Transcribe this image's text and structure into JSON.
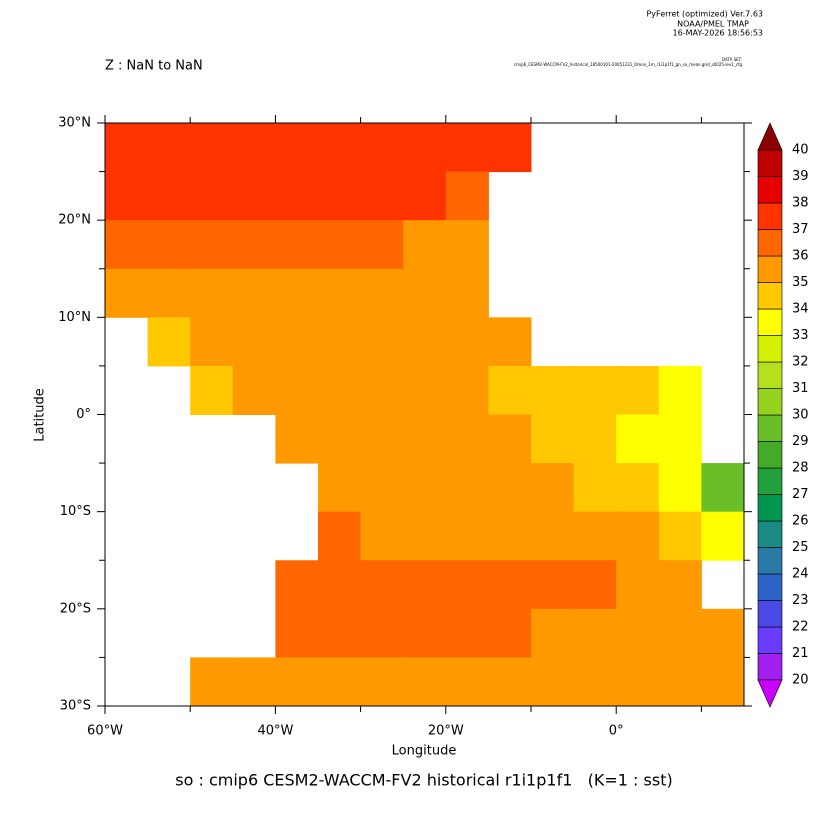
{
  "chart_data": {
    "type": "heatmap",
    "header": [
      "PyFerret (optimized) Ver.7.63",
      "NOAA/PMEL TMAP",
      "16-MAY-2026 18:56:53"
    ],
    "dataset_label": "DATA SET:",
    "dataset": "cmip6_CESM2-WACCM-FV2_historical_18500101-20051231_Omon_1m_r1i1p1f1_gn_so_mean.grid_s0025-lev1_cfg",
    "subtitle": "Z : NaN to NaN",
    "title": "so : cmip6 CESM2-WACCM-FV2 historical r1i1p1f1   (K=1 : sst)",
    "x_label": "Longitude",
    "y_label": "Latitude",
    "xlim": [
      -60,
      15
    ],
    "ylim": [
      -30,
      30
    ],
    "xticks": [
      {
        "value": -60,
        "label": "60°W"
      },
      {
        "value": -40,
        "label": "40°W"
      },
      {
        "value": -20,
        "label": "20°W"
      },
      {
        "value": 0,
        "label": "0°"
      }
    ],
    "xminorticks": [
      -50,
      -30,
      -10,
      10
    ],
    "yticks": [
      {
        "value": -30,
        "label": "30°S"
      },
      {
        "value": -20,
        "label": "20°S"
      },
      {
        "value": -10,
        "label": "10°S"
      },
      {
        "value": 0,
        "label": "0°"
      },
      {
        "value": 10,
        "label": "10°N"
      },
      {
        "value": 20,
        "label": "20°N"
      },
      {
        "value": 30,
        "label": "30°N"
      }
    ],
    "yminorticks": [
      -25,
      -15,
      -5,
      5,
      15,
      25
    ],
    "x": [
      -57.5,
      -52.5,
      -47.5,
      -42.5,
      -37.5,
      -32.5,
      -27.5,
      -22.5,
      -17.5,
      -12.5,
      -7.5,
      -2.5,
      2.5,
      7.5,
      12.5
    ],
    "y": [
      27.5,
      22.5,
      17.5,
      12.5,
      7.5,
      2.5,
      -2.5,
      -7.5,
      -12.5,
      -17.5,
      -22.5,
      -27.5
    ],
    "values": [
      [
        37,
        37,
        37,
        37,
        37,
        37,
        37,
        37,
        37,
        37,
        null,
        null,
        null,
        null,
        null
      ],
      [
        37,
        37,
        37,
        37,
        37,
        37,
        37,
        37,
        36,
        null,
        null,
        null,
        null,
        null,
        null
      ],
      [
        36,
        36,
        36,
        36,
        36,
        36,
        36,
        35,
        35,
        null,
        null,
        null,
        null,
        null,
        null
      ],
      [
        35,
        35,
        35,
        35,
        35,
        35,
        35,
        35,
        35,
        null,
        null,
        null,
        null,
        null,
        null
      ],
      [
        null,
        34,
        35,
        35,
        35,
        35,
        35,
        35,
        35,
        35,
        null,
        null,
        null,
        null,
        null
      ],
      [
        null,
        null,
        34,
        35,
        35,
        35,
        35,
        35,
        35,
        34,
        34,
        34,
        34,
        33,
        null
      ],
      [
        null,
        null,
        null,
        null,
        35,
        35,
        35,
        35,
        35,
        35,
        34,
        34,
        33,
        33,
        null
      ],
      [
        null,
        null,
        null,
        null,
        null,
        35,
        35,
        35,
        35,
        35,
        35,
        34,
        34,
        33,
        29
      ],
      [
        null,
        null,
        null,
        null,
        null,
        36,
        35,
        35,
        35,
        35,
        35,
        35,
        35,
        34,
        33
      ],
      [
        null,
        null,
        null,
        null,
        36,
        36,
        36,
        36,
        36,
        36,
        36,
        36,
        35,
        35,
        null
      ],
      [
        null,
        null,
        null,
        null,
        36,
        36,
        36,
        36,
        36,
        36,
        35,
        35,
        35,
        35,
        35
      ],
      [
        null,
        null,
        35,
        35,
        35,
        35,
        35,
        35,
        35,
        35,
        35,
        35,
        35,
        35,
        35
      ]
    ],
    "colorbar": {
      "levels": [
        20,
        21,
        22,
        23,
        24,
        25,
        26,
        27,
        28,
        29,
        30,
        31,
        32,
        33,
        34,
        35,
        36,
        37,
        38,
        39,
        40
      ],
      "colors": [
        "#a020f0",
        "#6a3cff",
        "#4a4ae6",
        "#2e64c8",
        "#2a7aa8",
        "#1a8a84",
        "#009650",
        "#22a03c",
        "#44aa2a",
        "#6abe28",
        "#94d21e",
        "#b4e01e",
        "#d2f000",
        "#ffff00",
        "#ffc800",
        "#ff9900",
        "#ff6600",
        "#ff3300",
        "#e60000",
        "#c00000"
      ],
      "under_color": "#cc00ff",
      "over_color": "#8b0000"
    }
  }
}
